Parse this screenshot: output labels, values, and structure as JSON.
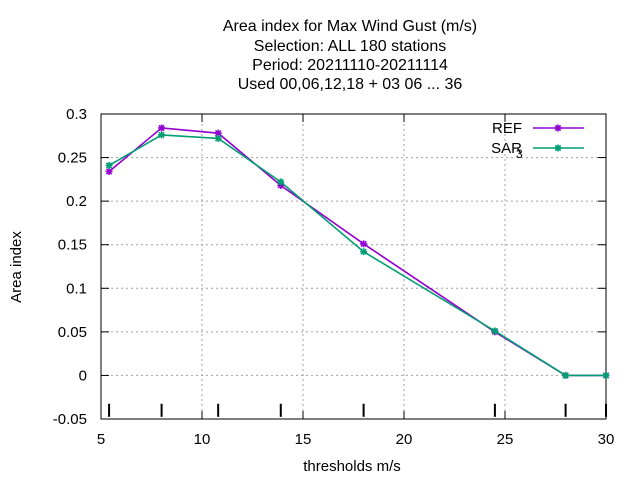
{
  "chart_data": {
    "type": "line",
    "title": [
      "Area index  for Max Wind Gust (m/s)",
      "Selection: ALL    180 stations",
      "Period: 20211110-20211114",
      "Used  00,06,12,18 + 03 06 ... 36"
    ],
    "xlabel": "thresholds m/s",
    "ylabel": "Area index",
    "xlim": [
      5,
      30
    ],
    "ylim": [
      -0.05,
      0.3
    ],
    "xticks": [
      5,
      10,
      15,
      20,
      25,
      30
    ],
    "yticks": [
      -0.05,
      0,
      0.05,
      0.1,
      0.15,
      0.2,
      0.25,
      0.3
    ],
    "ytick_labels": [
      "-0.05",
      "0",
      "0.05",
      "0.1",
      "0.15",
      "0.2",
      "0.25",
      "0.3"
    ],
    "grid": true,
    "legend_position": "top-right",
    "threshold_marks": [
      5.4,
      8,
      10.8,
      13.9,
      18,
      24.5,
      28,
      30
    ],
    "series": [
      {
        "name": "REF",
        "color": "#9400d3",
        "x": [
          5.4,
          8,
          10.8,
          13.9,
          18,
          24.5,
          28,
          30
        ],
        "y": [
          0.234,
          0.284,
          0.278,
          0.218,
          0.151,
          0.05,
          0.0,
          0.0
        ]
      },
      {
        "name": "SAR",
        "name_subscript": "3",
        "color": "#009e73",
        "x": [
          5.4,
          8,
          10.8,
          13.9,
          18,
          24.5,
          28,
          30
        ],
        "y": [
          0.241,
          0.276,
          0.272,
          0.222,
          0.142,
          0.051,
          0.0,
          0.0
        ]
      }
    ]
  }
}
